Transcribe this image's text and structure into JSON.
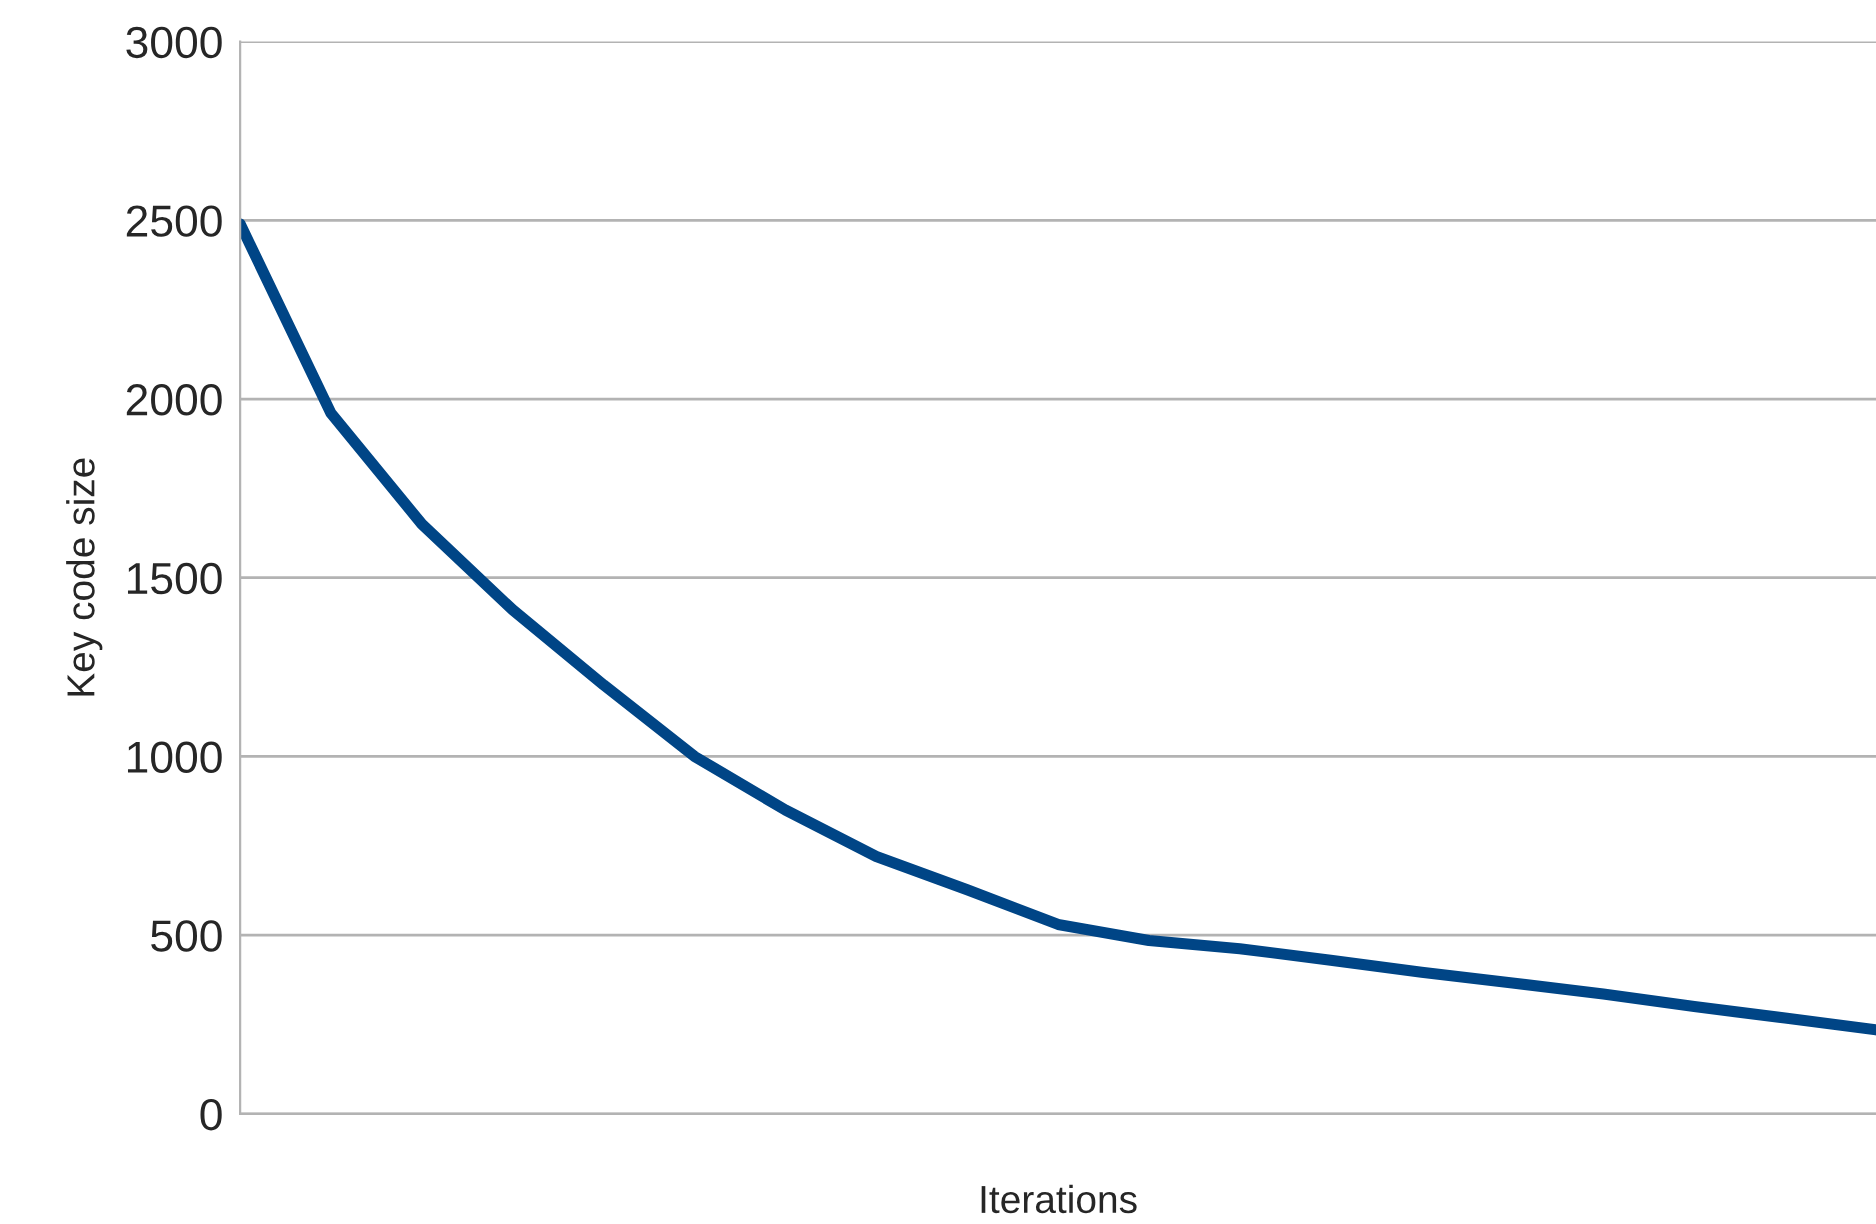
{
  "chart_data": {
    "type": "line",
    "xlabel": "Iterations",
    "ylabel": "Key code size",
    "categories": [
      null,
      null,
      null,
      null,
      null,
      null,
      null,
      null,
      null,
      null,
      null,
      null,
      null,
      null,
      null,
      null,
      null,
      null,
      null
    ],
    "series": [
      {
        "color": "#004586",
        "values": [
          2490,
          1960,
          1650,
          1410,
          1200,
          1000,
          850,
          720,
          627,
          530,
          485,
          462,
          430,
          396,
          366,
          335,
          300,
          268,
          235
        ]
      }
    ],
    "ylim": [
      0,
      3000
    ],
    "yticks": [
      0,
      500,
      1000,
      1500,
      2000,
      2500,
      3000
    ],
    "grid": "y",
    "legend": false,
    "marker": "none",
    "line_style": "solid"
  }
}
